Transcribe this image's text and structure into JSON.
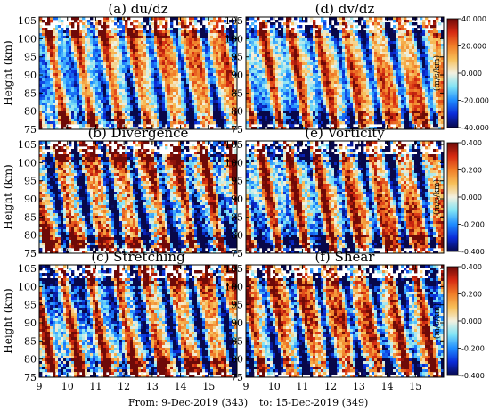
{
  "chart_data": {
    "type": "heatmap",
    "x_ticks": [
      "9",
      "10",
      "11",
      "12",
      "13",
      "14",
      "15"
    ],
    "x_range_days": [
      9,
      16
    ],
    "y_ticks": [
      "75",
      "80",
      "85",
      "90",
      "95",
      "100",
      "105"
    ],
    "y_range_km": [
      75,
      106
    ],
    "ylabel": "Height (km)",
    "footer": {
      "from": "From:  9-Dec-2019 (343)",
      "to": "to: 15-Dec-2019 (349)"
    },
    "colorscale": [
      "#08084a",
      "#0a2bd8",
      "#1f8cff",
      "#7fe3f5",
      "#f3f1e0",
      "#f7c05a",
      "#f07d28",
      "#d62a12",
      "#6e0a08"
    ],
    "panels": [
      {
        "id": "a",
        "title": "(a) du/dz",
        "row": 0,
        "col": 0,
        "scale": 1.0,
        "seed": 11
      },
      {
        "id": "d",
        "title": "(d) dv/dz",
        "row": 0,
        "col": 1,
        "scale": 1.0,
        "seed": 23
      },
      {
        "id": "b",
        "title": "(b) Divergence",
        "row": 1,
        "col": 0,
        "scale": 1.3,
        "seed": 37
      },
      {
        "id": "e",
        "title": "(e) Vorticity",
        "row": 1,
        "col": 1,
        "scale": 1.2,
        "seed": 41
      },
      {
        "id": "c",
        "title": "(c) Stretching",
        "row": 2,
        "col": 0,
        "scale": 1.2,
        "seed": 53
      },
      {
        "id": "f",
        "title": "(f) Shear",
        "row": 2,
        "col": 1,
        "scale": 1.2,
        "seed": 67
      }
    ],
    "colorbars": [
      {
        "row": 0,
        "ticks": [
          "40.000",
          "20.000",
          "0.000",
          "-20.000",
          "-40.000"
        ],
        "range": [
          -40,
          40
        ],
        "unit": "(m/s/km)"
      },
      {
        "row": 1,
        "ticks": [
          "0.400",
          "0.200",
          "0.000",
          "-0.200",
          "-0.400"
        ],
        "range": [
          -0.4,
          0.4
        ],
        "unit": "(m/s/km)"
      },
      {
        "row": 2,
        "ticks": [
          "0.400",
          "0.200",
          "0.000",
          "-0.200",
          "-0.400"
        ],
        "range": [
          -0.4,
          0.4
        ],
        "unit": "(m/s/km)"
      }
    ]
  }
}
